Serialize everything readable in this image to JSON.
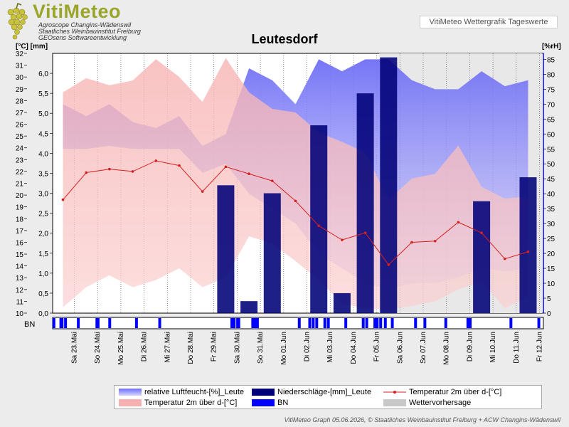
{
  "logo": {
    "title": "VitiMeteo",
    "lines": [
      "Agroscope Changins-Wädenswil",
      "Staatliches Weinbauinstitut Freiburg",
      "GEOsens Softwareentwicklung"
    ]
  },
  "header_label": "VitiMeteo Wettergrafik Tageswerte",
  "footer": "VitiMeteo Graph 05.06.2026, © Staatliches Weinbauinstitut Freiburg + ACW Changins-Wädenswil",
  "colors": {
    "humidity": "#7a6ff0",
    "precip": "#000078",
    "temp_line": "#d62020",
    "temp_band": "#f4a8a8",
    "bn": "#0000ff",
    "forecast": "#c0c0c0"
  },
  "legend": {
    "humidity": "relative Luftfeucht-[%]_Leute",
    "precip": "Niederschläge-[mm]_Leute",
    "temp_line": "Temperatur 2m über d-[°C]",
    "temp_band": "Temperatur 2m über d-[°C]",
    "bn": "BN",
    "forecast": "Wettervorhersage"
  },
  "chart_data": {
    "type": "line",
    "title": "Leutesdorf",
    "categories": [
      "Sa 23.Mai",
      "So 24.Mai",
      "Mo 25.Mai",
      "Di 26.Mai",
      "Mi 27.Mai",
      "Do 28.Mai",
      "Fr 29.Mai",
      "Sa 30.Mai",
      "So 31.Mai",
      "Mo 01.Jun",
      "Di 02.Jun",
      "Mi 03.Jun",
      "Do 04.Jun",
      "Fr 05.Jun",
      "Sa 06.Jun",
      "So 07.Jun",
      "Mo 08.Jun",
      "Di 09.Jun",
      "Mi 10.Jun",
      "Do 11.Jun",
      "Fr 12.Jun"
    ],
    "axes": {
      "temp": {
        "label": "[°C]",
        "min": 10,
        "max": 32,
        "ticks": [
          10,
          11,
          12,
          13,
          14,
          15,
          16,
          17,
          18,
          19,
          20,
          21,
          22,
          23,
          24,
          25,
          26,
          27,
          28,
          29,
          30,
          31,
          32
        ]
      },
      "precip": {
        "label": "[mm]",
        "min": 0,
        "max": 6.5,
        "ticks": [
          "0,0",
          "0,5",
          "1,0",
          "1,5",
          "2,0",
          "2,5",
          "3,0",
          "3,5",
          "4,0",
          "4,5",
          "5,0",
          "5,5",
          "6,0"
        ]
      },
      "humidity": {
        "label": "[%rH]",
        "min": 0,
        "max": 87,
        "ticks": [
          0,
          5,
          10,
          15,
          20,
          25,
          30,
          35,
          40,
          45,
          50,
          55,
          60,
          65,
          70,
          75,
          80,
          85
        ]
      }
    },
    "series": [
      {
        "name": "Temperatur 2m über d-[°C]",
        "kind": "line",
        "points": [
          [
            0,
            19.6
          ],
          [
            1,
            21.9
          ],
          [
            2,
            22.2
          ],
          [
            3,
            22.0
          ],
          [
            4,
            22.9
          ],
          [
            5,
            22.5
          ],
          [
            6,
            20.3
          ],
          [
            7,
            22.4
          ],
          [
            8,
            21.8
          ],
          [
            9,
            21.2
          ],
          [
            10,
            19.5
          ],
          [
            11,
            17.4
          ],
          [
            12,
            16.2
          ],
          [
            13,
            16.8
          ],
          [
            14,
            14.1
          ],
          [
            15,
            16.0
          ],
          [
            16,
            16.1
          ],
          [
            17,
            17.7
          ],
          [
            18,
            16.8
          ],
          [
            19,
            14.6
          ],
          [
            20,
            15.2
          ]
        ]
      },
      {
        "name": "Temperatur 2m über d-[°C]",
        "kind": "band",
        "max": [
          [
            0,
            28.7
          ],
          [
            1,
            29.9
          ],
          [
            2,
            29.3
          ],
          [
            3,
            29.7
          ],
          [
            4,
            31.5
          ],
          [
            5,
            30.0
          ],
          [
            6,
            27.9
          ],
          [
            7,
            31.6
          ],
          [
            8,
            28.7
          ],
          [
            9,
            27.3
          ],
          [
            10,
            27.0
          ],
          [
            11,
            25.3
          ],
          [
            12,
            24.5
          ],
          [
            13,
            23.6
          ],
          [
            14,
            19.6
          ],
          [
            15,
            21.4
          ],
          [
            16,
            21.8
          ],
          [
            17,
            24.2
          ],
          [
            18,
            20.7
          ],
          [
            19,
            19.7
          ],
          [
            20,
            19.9
          ]
        ],
        "min": [
          [
            0,
            10.5
          ],
          [
            1,
            12.2
          ],
          [
            2,
            13.2
          ],
          [
            3,
            12.2
          ],
          [
            4,
            12.8
          ],
          [
            5,
            13.8
          ],
          [
            6,
            12.2
          ],
          [
            7,
            13.0
          ],
          [
            8,
            16.5
          ],
          [
            9,
            15.9
          ],
          [
            10,
            14.4
          ],
          [
            11,
            12.8
          ],
          [
            12,
            10.8
          ],
          [
            13,
            10.4
          ],
          [
            14,
            10.3
          ],
          [
            15,
            10.6
          ],
          [
            16,
            11.0
          ],
          [
            17,
            12.0
          ],
          [
            18,
            12.7
          ],
          [
            19,
            10.4
          ],
          [
            20,
            11.4
          ]
        ]
      },
      {
        "name": "relative Luftfeucht-[%]_Leute",
        "kind": "band",
        "max": [
          [
            0,
            70
          ],
          [
            1,
            66
          ],
          [
            2,
            70
          ],
          [
            3,
            64
          ],
          [
            4,
            62
          ],
          [
            5,
            66
          ],
          [
            6,
            56
          ],
          [
            7,
            60
          ],
          [
            8,
            82
          ],
          [
            9,
            78
          ],
          [
            10,
            70
          ],
          [
            11,
            85
          ],
          [
            12,
            81
          ],
          [
            13,
            85
          ],
          [
            14,
            85
          ],
          [
            15,
            78
          ],
          [
            16,
            75
          ],
          [
            17,
            75
          ],
          [
            18,
            81
          ],
          [
            19,
            76
          ],
          [
            20,
            78
          ]
        ],
        "min": [
          [
            0,
            55
          ],
          [
            1,
            55
          ],
          [
            2,
            56
          ],
          [
            3,
            55
          ],
          [
            4,
            55
          ],
          [
            5,
            55
          ],
          [
            6,
            47
          ],
          [
            7,
            50
          ],
          [
            8,
            40
          ],
          [
            9,
            35
          ],
          [
            10,
            30
          ],
          [
            11,
            20
          ],
          [
            12,
            15
          ],
          [
            13,
            10
          ],
          [
            14,
            8
          ],
          [
            15,
            10
          ],
          [
            16,
            10
          ],
          [
            17,
            12
          ],
          [
            18,
            15
          ],
          [
            19,
            14
          ],
          [
            20,
            15
          ]
        ]
      },
      {
        "name": "Niederschläge-[mm]_Leute",
        "kind": "bar",
        "points": [
          [
            7,
            3.2
          ],
          [
            8,
            0.3
          ],
          [
            9,
            3.0
          ],
          [
            11,
            4.7
          ],
          [
            12,
            0.5
          ],
          [
            13,
            5.5
          ],
          [
            14,
            6.4
          ],
          [
            18,
            2.8
          ],
          [
            20,
            3.4
          ]
        ]
      },
      {
        "name": "BN",
        "kind": "bars",
        "x": [
          -0.45,
          -0.15,
          -0.1,
          0.05,
          0.6,
          1.4,
          1.45,
          1.95,
          3.1,
          4.1,
          7.2,
          7.3,
          7.45,
          7.5,
          8.1,
          8.2,
          8.3,
          10.1,
          10.55,
          10.7,
          10.85,
          11.2,
          11.35,
          12.1,
          12.85,
          13.0,
          13.35,
          13.45,
          13.6,
          13.8,
          14.1,
          15.1,
          15.5,
          16.4,
          17.35,
          17.45,
          19.2,
          20.4
        ]
      },
      {
        "name": "Wettervorhersage",
        "kind": "region",
        "from": 13.6,
        "to": 20.6
      }
    ],
    "bn_label": "BN",
    "grid": true,
    "legend_position": "bottom"
  }
}
